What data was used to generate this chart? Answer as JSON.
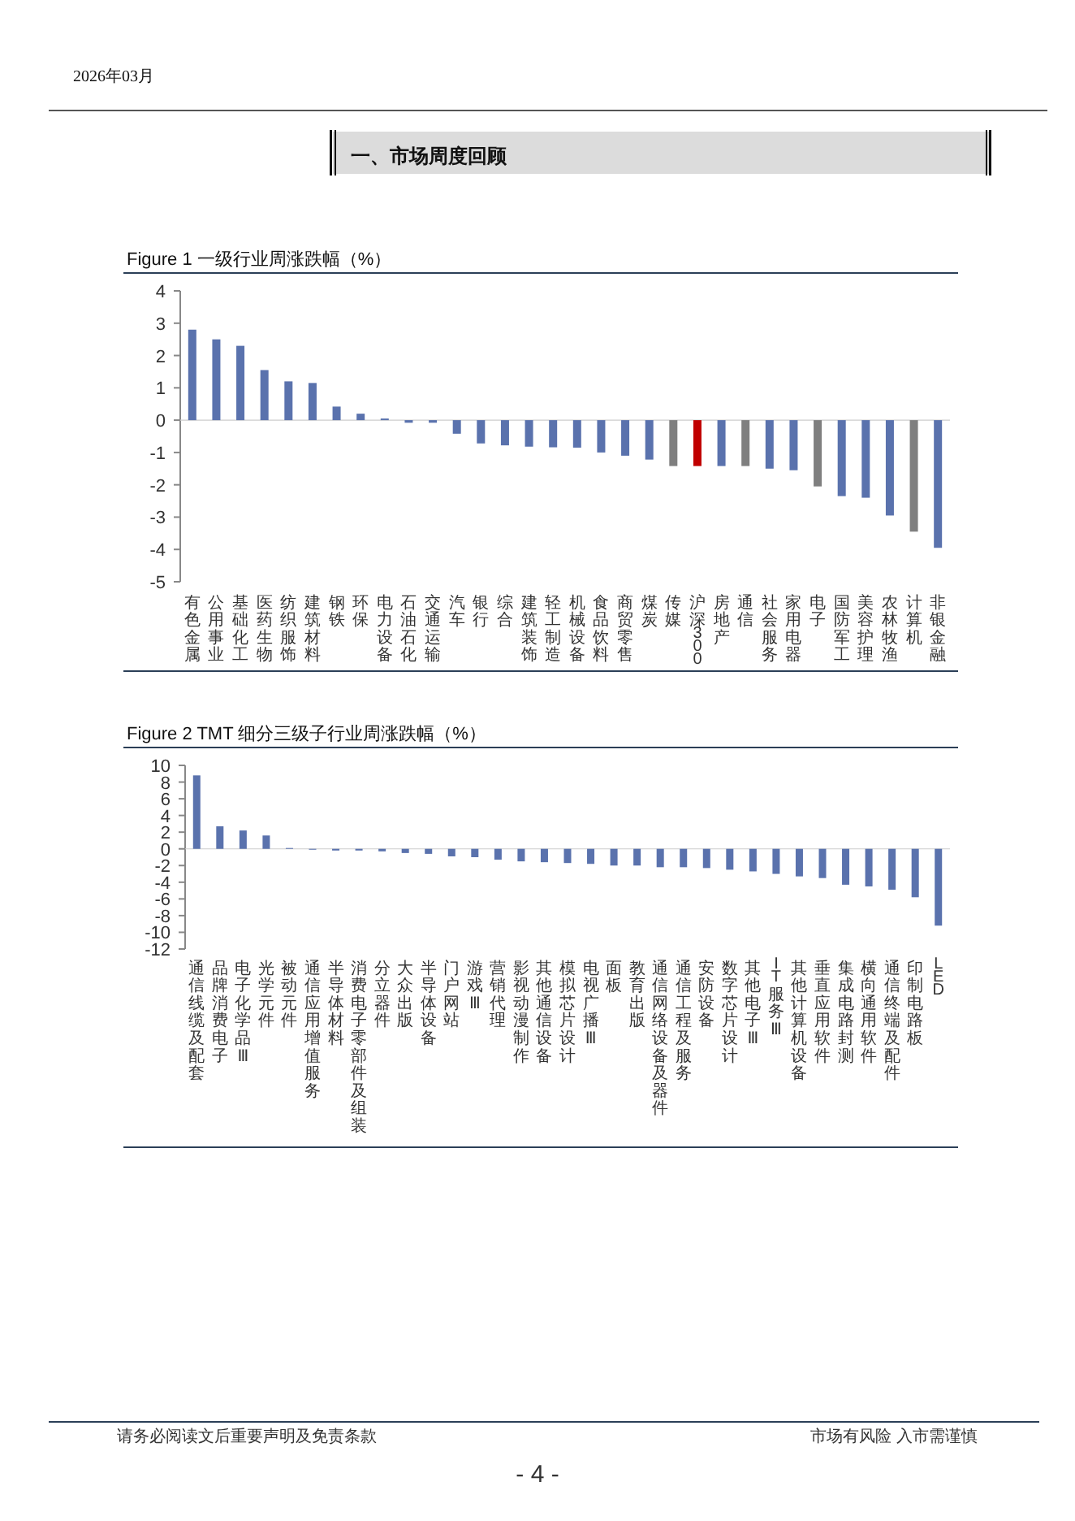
{
  "chart_data": [
    {
      "type": "bar",
      "title": "Figure 1 一级行业周涨跌幅（%）",
      "categories": [
        "有色金属",
        "公用事业",
        "基础化工",
        "医药生物",
        "纺织服饰",
        "建筑材料",
        "钢铁",
        "环保",
        "电力设备",
        "石油石化",
        "交通运输",
        "汽车",
        "银行",
        "综合",
        "建筑装饰",
        "轻工制造",
        "机械设备",
        "食品饮料",
        "商贸零售",
        "煤炭",
        "传媒",
        "沪深300",
        "房地产",
        "通信",
        "社会服务",
        "家用电器",
        "电子",
        "国防军工",
        "美容护理",
        "农林牧渔",
        "计算机",
        "非银金融"
      ],
      "values": [
        2.8,
        2.5,
        2.3,
        1.55,
        1.2,
        1.15,
        0.42,
        0.2,
        0.05,
        -0.08,
        -0.08,
        -0.42,
        -0.72,
        -0.78,
        -0.82,
        -0.84,
        -0.85,
        -1.0,
        -1.1,
        -1.22,
        -1.42,
        -1.42,
        -1.42,
        -1.42,
        -1.5,
        -1.55,
        -2.05,
        -2.35,
        -2.4,
        -2.95,
        -3.45,
        -3.95
      ],
      "colors": [
        "#5a72ad",
        "#5a72ad",
        "#5a72ad",
        "#5a72ad",
        "#5a72ad",
        "#5a72ad",
        "#5a72ad",
        "#5a72ad",
        "#5a72ad",
        "#5a72ad",
        "#5a72ad",
        "#5a72ad",
        "#5a72ad",
        "#5a72ad",
        "#5a72ad",
        "#5a72ad",
        "#5a72ad",
        "#5a72ad",
        "#5a72ad",
        "#5a72ad",
        "#7f7f7f",
        "#c00000",
        "#5a72ad",
        "#7f7f7f",
        "#5a72ad",
        "#5a72ad",
        "#7f7f7f",
        "#5a72ad",
        "#5a72ad",
        "#5a72ad",
        "#7f7f7f",
        "#5a72ad"
      ],
      "ylim": [
        -5,
        4
      ],
      "yticks": [
        -5,
        -4,
        -3,
        -2,
        -1,
        0,
        1,
        2,
        3,
        4
      ],
      "annotations": [
        "2026年03月",
        "一、市场周度回顾"
      ]
    },
    {
      "type": "bar",
      "title": "Figure 2 TMT 细分三级子行业周涨跌幅（%）",
      "categories": [
        "通信线缆及配套",
        "品牌消费电子",
        "电子化学品Ⅲ",
        "光学元件",
        "被动元件",
        "通信应用增值服务",
        "半导体材料",
        "消费电子零部件及组装",
        "分立器件",
        "大众出版",
        "半导体设备",
        "门户网站",
        "游戏Ⅲ",
        "营销代理",
        "影视动漫制作",
        "其他通信设备",
        "模拟芯片设计",
        "电视广播Ⅲ",
        "面板",
        "教育出版",
        "通信网络设备及器件",
        "通信工程及服务",
        "安防设备",
        "数字芯片设计",
        "其他电子Ⅲ",
        "IT服务Ⅲ",
        "其他计算机设备",
        "垂直应用软件",
        "集成电路封测",
        "横向通用软件",
        "通信终端及配件",
        "印制电路板",
        "LED"
      ],
      "values": [
        8.8,
        2.7,
        2.2,
        1.6,
        0.1,
        -0.1,
        -0.2,
        -0.2,
        -0.3,
        -0.5,
        -0.6,
        -0.9,
        -1.0,
        -1.3,
        -1.5,
        -1.6,
        -1.7,
        -1.8,
        -2.0,
        -2.0,
        -2.2,
        -2.2,
        -2.3,
        -2.5,
        -2.7,
        -3.0,
        -3.3,
        -3.5,
        -4.3,
        -4.5,
        -4.9,
        -5.8,
        -9.2
      ],
      "color": "#5a72ad",
      "ylim": [
        -12,
        10
      ],
      "yticks": [
        -12,
        -10,
        -8,
        -6,
        -4,
        -2,
        0,
        2,
        4,
        6,
        8,
        10
      ],
      "annotations": [
        "请务必阅读文后重要声明及免责条款",
        "市场有风险 入市需谨慎",
        "- 4 -"
      ]
    }
  ]
}
